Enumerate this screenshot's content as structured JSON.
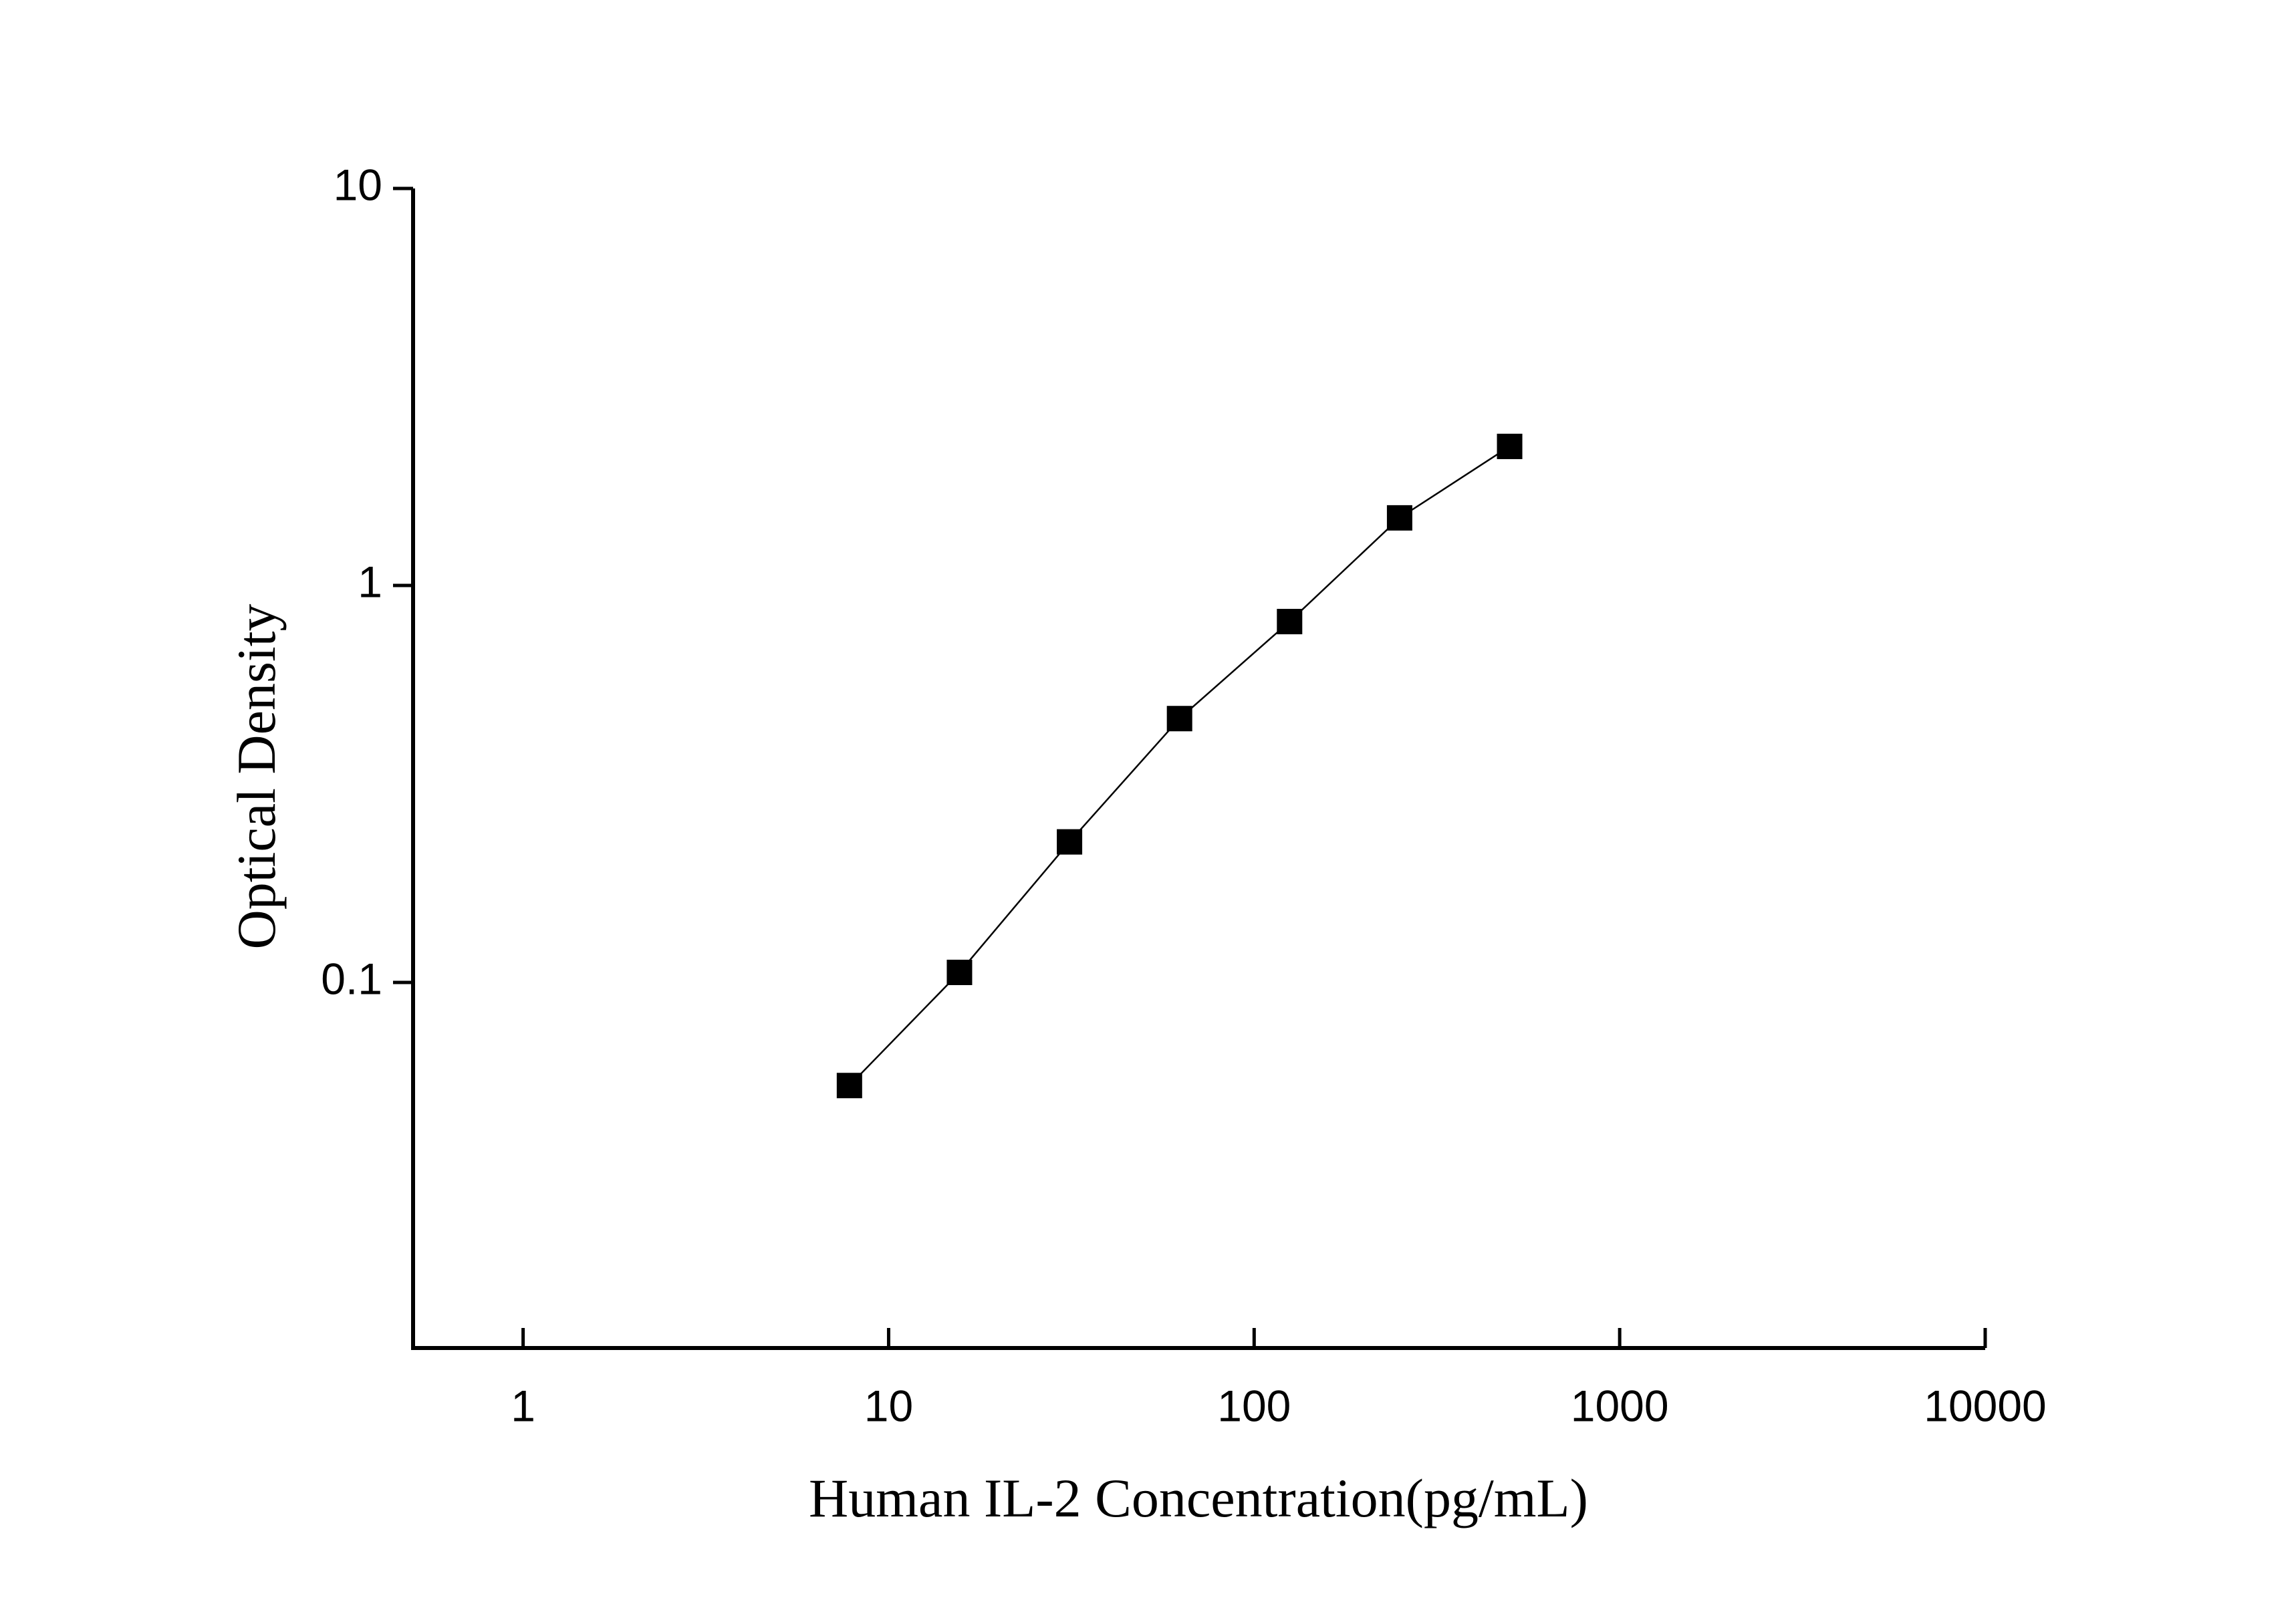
{
  "chart_data": {
    "type": "line",
    "x_label": "Human IL-2 Concentration(pg/mL)",
    "y_label": "Optical Density",
    "x": [
      7.8125,
      15.625,
      31.25,
      62.5,
      125,
      250,
      500
    ],
    "series": [
      {
        "color": "#000000",
        "values": [
          0.055,
          0.106,
          0.226,
          0.462,
          0.811,
          1.48,
          2.24
        ]
      }
    ],
    "xscale": "log",
    "yscale": "log",
    "xlim": [
      0.5,
      10000
    ],
    "ylim": [
      0.012,
      10
    ],
    "xticks": [
      1,
      10,
      100,
      1000,
      10000
    ],
    "yticks": [
      0.1,
      1,
      10
    ],
    "marker": "square"
  }
}
